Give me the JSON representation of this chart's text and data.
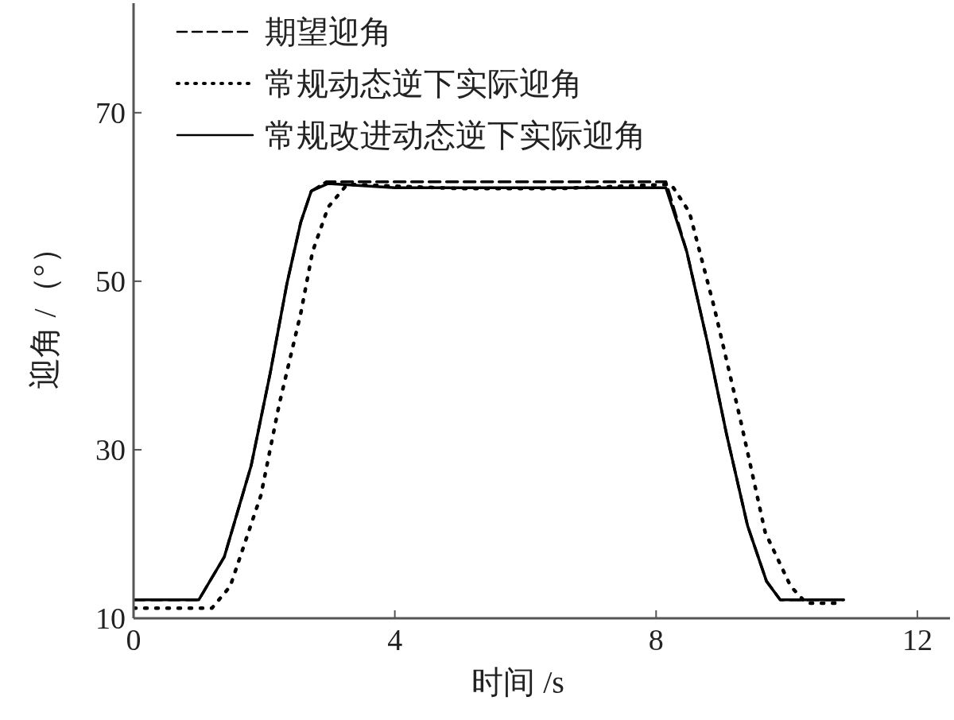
{
  "chart_data": {
    "type": "line",
    "xlabel": "时间 /s",
    "ylabel": "迎角 /（°）",
    "xlim": [
      0,
      12.5
    ],
    "ylim": [
      10,
      83
    ],
    "xticks": [
      0,
      4,
      8,
      12
    ],
    "yticks": [
      10,
      30,
      50,
      70
    ],
    "legend": "top left",
    "series": [
      {
        "name": "期望迎角",
        "color": "#000000",
        "line_style": "dashed",
        "x": [
          0,
          1.0,
          1.39,
          1.8,
          2.09,
          2.35,
          2.56,
          2.72,
          2.95,
          8.15,
          8.47,
          8.79,
          9.08,
          9.4,
          9.69,
          9.9,
          10.87
        ],
        "values": [
          12.2,
          12.2,
          17.3,
          28.1,
          39.0,
          49.8,
          57.0,
          60.7,
          61.8,
          61.8,
          53.5,
          42.6,
          31.8,
          21.0,
          14.4,
          12.2,
          12.2
        ]
      },
      {
        "name": "常规动态逆下实际迎角",
        "color": "#000000",
        "line_style": "dotted",
        "x": [
          0,
          1.2,
          1.48,
          1.95,
          2.23,
          2.56,
          2.74,
          2.98,
          3.27,
          5.0,
          6.5,
          8.23,
          8.51,
          8.89,
          9.29,
          9.67,
          10.06,
          10.3,
          10.87
        ],
        "values": [
          11.2,
          11.2,
          13.8,
          24.6,
          35.4,
          46.2,
          53.5,
          58.8,
          61.5,
          61.0,
          61.0,
          61.5,
          58.2,
          46.9,
          33.6,
          20.2,
          13.8,
          11.8,
          11.8
        ]
      },
      {
        "name": "常规改进动态逆下实际迎角",
        "color": "#000000",
        "line_style": "solid",
        "x": [
          0,
          1.0,
          1.39,
          1.8,
          2.09,
          2.35,
          2.56,
          2.72,
          2.98,
          4.0,
          6.0,
          8.15,
          8.47,
          8.79,
          9.08,
          9.4,
          9.69,
          9.9,
          10.87
        ],
        "values": [
          12.2,
          12.2,
          17.3,
          28.1,
          39.0,
          49.8,
          57.0,
          60.7,
          61.6,
          61.1,
          61.1,
          61.1,
          53.5,
          42.6,
          31.8,
          21.0,
          14.4,
          12.2,
          12.2
        ]
      }
    ]
  }
}
